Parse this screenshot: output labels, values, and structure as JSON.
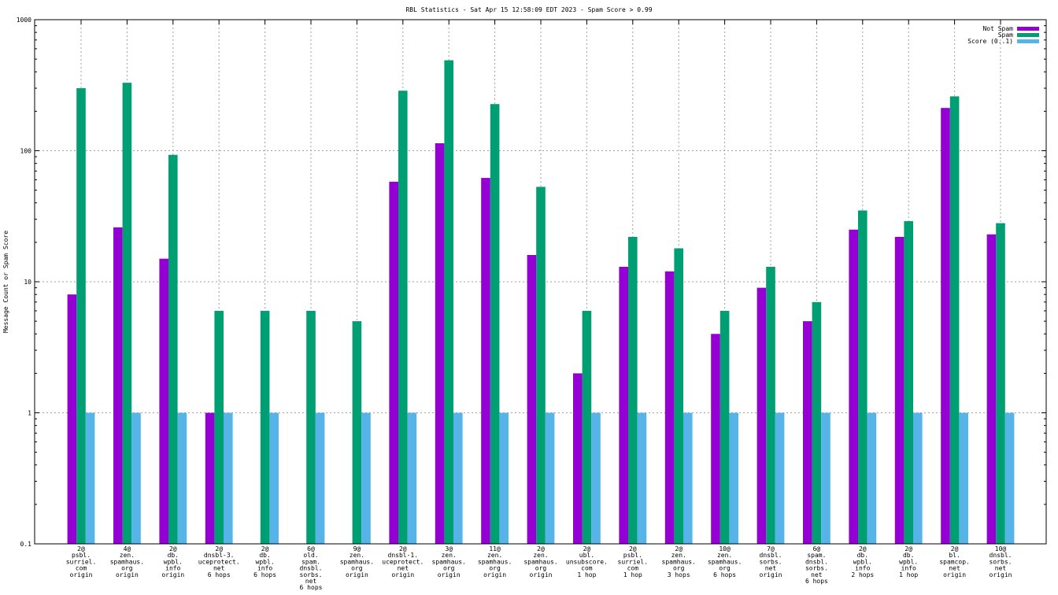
{
  "chart_data": {
    "type": "bar",
    "title": "RBL Statistics - Sat Apr 15 12:58:09 EDT 2023 - Spam Score > 0.99",
    "ylabel": "Message Count or Spam Score",
    "xlabel": "",
    "y_scale": "log",
    "ylim": [
      0.1,
      1000
    ],
    "y_ticks": [
      "0.1",
      "1",
      "10",
      "100",
      "1000"
    ],
    "grid": true,
    "legend_position": "top-right",
    "categories": [
      [
        "2@",
        "psbl.",
        "surriel.",
        "com",
        "origin"
      ],
      [
        "4@",
        "zen.",
        "spamhaus.",
        "org",
        "origin"
      ],
      [
        "2@",
        "db.",
        "wpbl.",
        "info",
        "origin"
      ],
      [
        "2@",
        "dnsbl-3.",
        "uceprotect.",
        "net",
        "6 hops"
      ],
      [
        "2@",
        "db.",
        "wpbl.",
        "info",
        "6 hops"
      ],
      [
        "6@",
        "old.",
        "spam.",
        "dnsbl.",
        "sorbs.",
        "net",
        "6 hops"
      ],
      [
        "9@",
        "zen.",
        "spamhaus.",
        "org",
        "origin"
      ],
      [
        "2@",
        "dnsbl-1.",
        "uceprotect.",
        "net",
        "origin"
      ],
      [
        "3@",
        "zen.",
        "spamhaus.",
        "org",
        "origin"
      ],
      [
        "11@",
        "zen.",
        "spamhaus.",
        "org",
        "origin"
      ],
      [
        "2@",
        "zen.",
        "spamhaus.",
        "org",
        "origin"
      ],
      [
        "2@",
        "ubl.",
        "unsubscore.",
        "com",
        "1 hop"
      ],
      [
        "2@",
        "psbl.",
        "surriel.",
        "com",
        "1 hop"
      ],
      [
        "2@",
        "zen.",
        "spamhaus.",
        "org",
        "3 hops"
      ],
      [
        "10@",
        "zen.",
        "spamhaus.",
        "org",
        "6 hops"
      ],
      [
        "7@",
        "dnsbl.",
        "sorbs.",
        "net",
        "origin"
      ],
      [
        "6@",
        "spam.",
        "dnsbl.",
        "sorbs.",
        "net",
        "6 hops"
      ],
      [
        "2@",
        "db.",
        "wpbl.",
        "info",
        "2 hops"
      ],
      [
        "2@",
        "db.",
        "wpbl.",
        "info",
        "1 hop"
      ],
      [
        "2@",
        "bl.",
        "spamcop.",
        "net",
        "origin"
      ],
      [
        "10@",
        "dnsbl.",
        "sorbs.",
        "net",
        "origin"
      ]
    ],
    "series": [
      {
        "name": "Not Spam",
        "color": "#9400d3",
        "values": [
          8,
          26,
          15,
          1,
          null,
          null,
          null,
          58,
          114,
          62,
          16,
          2,
          13,
          12,
          4,
          9,
          5,
          25,
          22,
          212,
          23
        ]
      },
      {
        "name": "Spam",
        "color": "#009e73",
        "values": [
          300,
          330,
          93,
          6,
          6,
          6,
          5,
          287,
          490,
          227,
          53,
          6,
          22,
          18,
          6,
          13,
          7,
          35,
          29,
          260,
          28
        ]
      },
      {
        "name": "Score (0..1)",
        "color": "#56b4e9",
        "values": [
          1,
          1,
          1,
          1,
          1,
          1,
          1,
          1,
          1,
          1,
          1,
          1,
          1,
          1,
          1,
          1,
          1,
          1,
          1,
          1,
          1
        ]
      }
    ]
  }
}
